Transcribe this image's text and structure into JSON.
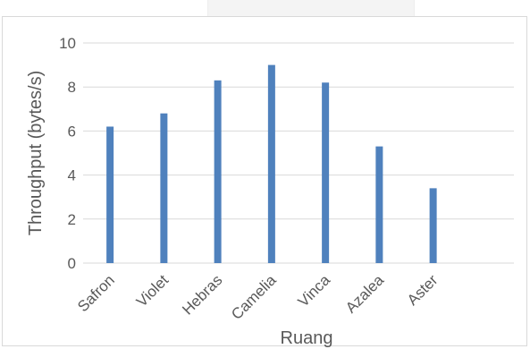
{
  "chart_data": {
    "type": "bar",
    "categories": [
      "Safron",
      "Violet",
      "Hebras",
      "Camelia",
      "Vinca",
      "Azalea",
      "Aster"
    ],
    "values": [
      6.2,
      6.8,
      8.3,
      9.0,
      8.2,
      5.3,
      3.4
    ],
    "title": "",
    "xlabel": "Ruang",
    "ylabel": "Throughput (bytes/s)",
    "ylim": [
      0,
      10
    ],
    "yticks": [
      0,
      2,
      4,
      6,
      8,
      10
    ],
    "ytick_labels": [
      "0",
      "2",
      "4",
      "6",
      "8",
      "10"
    ],
    "grid": true,
    "legend": "none",
    "bar_color": "#4f81bd",
    "grid_color": "#d9d9d9"
  }
}
